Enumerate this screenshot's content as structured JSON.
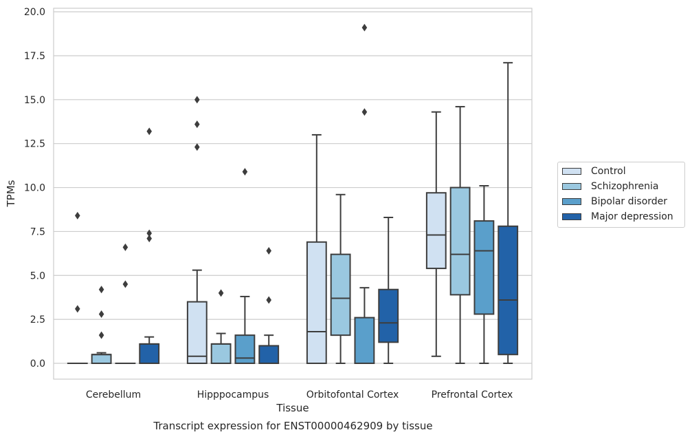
{
  "chart_data": {
    "type": "box",
    "xlabel": "Tissue",
    "ylabel": "TPMs",
    "caption": "Transcript expression for ENST00000462909 by tissue",
    "ylim": [
      -0.9,
      20.2
    ],
    "yticks": [
      0.0,
      2.5,
      5.0,
      7.5,
      10.0,
      12.5,
      15.0,
      17.5,
      20.0
    ],
    "ytick_labels": [
      "0.0",
      "2.5",
      "5.0",
      "7.5",
      "10.0",
      "12.5",
      "15.0",
      "17.5",
      "20.0"
    ],
    "grid": "horizontal",
    "legend_position": "right",
    "categories": [
      "Cerebellum",
      "Hipppocampus",
      "Orbitofontal Cortex",
      "Prefrontal Cortex"
    ],
    "series": [
      {
        "name": "Control",
        "color": "#d0e1f2",
        "boxes": [
          {
            "q1": 0,
            "median": 0,
            "q3": 0,
            "whisker_low": 0,
            "whisker_high": 0,
            "outliers": [
              3.1,
              8.4
            ]
          },
          {
            "q1": 0,
            "median": 0.4,
            "q3": 3.5,
            "whisker_low": 0,
            "whisker_high": 5.3,
            "outliers": [
              12.3,
              13.6,
              15.0
            ]
          },
          {
            "q1": 0,
            "median": 1.8,
            "q3": 6.9,
            "whisker_low": 0,
            "whisker_high": 13.0,
            "outliers": []
          },
          {
            "q1": 5.4,
            "median": 7.3,
            "q3": 9.7,
            "whisker_low": 0.4,
            "whisker_high": 14.3,
            "outliers": []
          }
        ]
      },
      {
        "name": "Schizophrenia",
        "color": "#9ac8e0",
        "boxes": [
          {
            "q1": 0,
            "median": 0.5,
            "q3": 0.5,
            "whisker_low": 0,
            "whisker_high": 0.6,
            "outliers": [
              1.6,
              2.8,
              4.2
            ]
          },
          {
            "q1": 0,
            "median": 1.1,
            "q3": 1.1,
            "whisker_low": 0,
            "whisker_high": 1.7,
            "outliers": [
              4.0
            ]
          },
          {
            "q1": 1.6,
            "median": 3.7,
            "q3": 6.2,
            "whisker_low": 0,
            "whisker_high": 9.6,
            "outliers": []
          },
          {
            "q1": 3.9,
            "median": 6.2,
            "q3": 10.0,
            "whisker_low": 0,
            "whisker_high": 14.6,
            "outliers": []
          }
        ]
      },
      {
        "name": "Bipolar disorder",
        "color": "#5a9fcb",
        "boxes": [
          {
            "q1": 0,
            "median": 0,
            "q3": 0,
            "whisker_low": 0,
            "whisker_high": 0,
            "outliers": [
              4.5,
              6.6
            ]
          },
          {
            "q1": 0,
            "median": 0.3,
            "q3": 1.6,
            "whisker_low": 0,
            "whisker_high": 3.8,
            "outliers": [
              10.9
            ]
          },
          {
            "q1": 0,
            "median": 0,
            "q3": 2.6,
            "whisker_low": 0,
            "whisker_high": 4.3,
            "outliers": [
              14.3,
              19.1
            ]
          },
          {
            "q1": 2.8,
            "median": 6.4,
            "q3": 8.1,
            "whisker_low": 0,
            "whisker_high": 10.1,
            "outliers": []
          }
        ]
      },
      {
        "name": "Major depression",
        "color": "#2262a8",
        "boxes": [
          {
            "q1": 0,
            "median": 1.1,
            "q3": 1.1,
            "whisker_low": 0,
            "whisker_high": 1.5,
            "outliers": [
              7.1,
              7.4,
              13.2
            ]
          },
          {
            "q1": 0,
            "median": 1.0,
            "q3": 1.0,
            "whisker_low": 0,
            "whisker_high": 1.6,
            "outliers": [
              3.6,
              6.4
            ]
          },
          {
            "q1": 1.2,
            "median": 2.3,
            "q3": 4.2,
            "whisker_low": 0,
            "whisker_high": 8.3,
            "outliers": []
          },
          {
            "q1": 0.5,
            "median": 3.6,
            "q3": 7.8,
            "whisker_low": 0,
            "whisker_high": 17.1,
            "outliers": []
          }
        ]
      }
    ]
  }
}
